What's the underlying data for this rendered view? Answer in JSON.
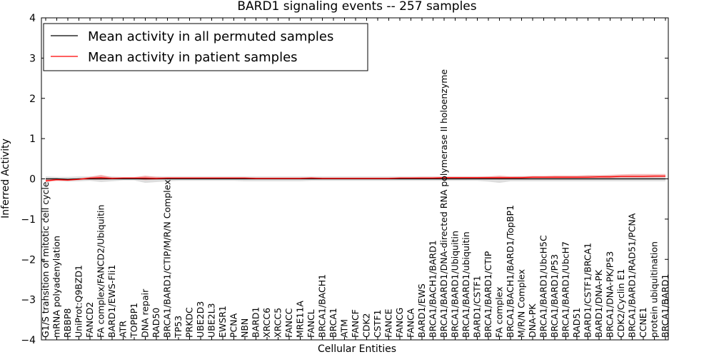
{
  "chart_data": {
    "type": "line",
    "title": "BARD1 signaling events -- 257 samples",
    "xlabel": "Cellular Entities",
    "ylabel": "Inferred Activity",
    "ylim": [
      -4,
      4
    ],
    "yticks": [
      -4,
      -3,
      -2,
      -1,
      0,
      1,
      2,
      3,
      4
    ],
    "ytick_labels": [
      "−4",
      "−3",
      "−2",
      "−1",
      "0",
      "1",
      "2",
      "3",
      "4"
    ],
    "legend": {
      "placement": "top-left",
      "entries": [
        {
          "label": "Mean activity in all permuted samples",
          "color": "#000000"
        },
        {
          "label": "Mean activity in patient samples",
          "color": "#ff0000"
        }
      ]
    },
    "categories": [
      "G1/S transition of mitotic cell cycle",
      "mRNA polyadenylation",
      "RBBP8",
      "UniProt:Q9BZD1",
      "FANCD2",
      "FA complex/FANCD2/Ubiquitin",
      "BARD1/EWS-Fli1",
      "ATR",
      "TOPBP1",
      "DNA repair",
      "RAD50",
      "BRCA1/BARD1/CTIP/M/R/N Complex",
      "TP53",
      "PRKDC",
      "UBE2D3",
      "UBE2L3",
      "EWSR1",
      "PCNA",
      "NBN",
      "BARD1",
      "XRCC6",
      "XRCC5",
      "FANCC",
      "MRE11A",
      "FANCL",
      "BRCA1/BACH1",
      "BRCA1",
      "ATM",
      "FANCF",
      "CDK2",
      "CSTF1",
      "FANCE",
      "FANCG",
      "FANCA",
      "BARD1/EWS",
      "BRCA1/BACH1/BARD1",
      "BRCA1/BARD1/DNA-directed RNA polymerase II holoenzyme",
      "BRCA1/BARD1/Ubiquitin",
      "BRCA1/BARD1/ubiquitin",
      "BARD1/CSTF1",
      "BRCA1/BARD1/CTIP",
      "FA complex",
      "BRCA1/BACH1/BARD1/TopBP1",
      "M/R/N Complex",
      "DNA-PK",
      "BRCA1/BARD1/UbcH5C",
      "BRCA1/BARD1/P53",
      "BRCA1/BARD1/UbcH7",
      "RAD51",
      "BARD1/CSTF1/BRCA1",
      "BARD1/DNA-PK",
      "BRCA1/DNA-PK/P53",
      "CDK2/Cyclin E1",
      "BRCA1/BARD1/RAD51/PCNA",
      "CCNE1",
      "protein ubiquitination",
      "BRCA1/BARD1"
    ],
    "series": [
      {
        "name": "Mean activity in all permuted samples",
        "color": "#000000",
        "values": [
          0.0,
          0.0,
          -0.01,
          0.0,
          0.0,
          0.0,
          0.0,
          0.0,
          0.0,
          0.0,
          0.0,
          0.0,
          0.0,
          0.0,
          0.0,
          0.0,
          0.0,
          0.0,
          0.0,
          0.0,
          0.0,
          0.0,
          0.0,
          0.0,
          0.0,
          0.0,
          0.0,
          0.0,
          0.0,
          0.0,
          0.0,
          0.0,
          0.0,
          0.0,
          0.0,
          0.0,
          0.0,
          0.0,
          0.0,
          0.0,
          0.0,
          0.0,
          0.0,
          0.0,
          0.0,
          0.0,
          0.0,
          0.0,
          0.0,
          0.0,
          0.0,
          0.0,
          0.0,
          0.0,
          0.0,
          0.0,
          0.0
        ]
      },
      {
        "name": "Mean activity in patient samples",
        "color": "#ff0000",
        "values": [
          -0.05,
          -0.02,
          -0.03,
          -0.01,
          0.02,
          0.03,
          0.01,
          0.02,
          0.02,
          0.02,
          0.01,
          0.02,
          0.02,
          0.02,
          0.02,
          0.02,
          0.02,
          0.02,
          0.02,
          0.01,
          0.01,
          0.01,
          0.01,
          0.01,
          0.02,
          0.01,
          0.01,
          0.01,
          0.01,
          0.01,
          0.01,
          0.01,
          0.02,
          0.02,
          0.02,
          0.02,
          0.03,
          0.03,
          0.03,
          0.03,
          0.03,
          0.03,
          0.03,
          0.03,
          0.04,
          0.04,
          0.04,
          0.04,
          0.04,
          0.04,
          0.05,
          0.05,
          0.06,
          0.06,
          0.06,
          0.07,
          0.07
        ]
      }
    ],
    "bands": [
      {
        "name": "permuted samples range",
        "color": "#b4b4b4",
        "lower": [
          -0.06,
          -0.05,
          -0.07,
          -0.06,
          -0.05,
          -0.08,
          -0.06,
          -0.04,
          -0.04,
          -0.1,
          -0.08,
          -0.06,
          -0.05,
          -0.05,
          -0.05,
          -0.05,
          -0.05,
          -0.05,
          -0.06,
          -0.06,
          -0.06,
          -0.06,
          -0.06,
          -0.06,
          -0.05,
          -0.05,
          -0.05,
          -0.05,
          -0.05,
          -0.05,
          -0.05,
          -0.05,
          -0.05,
          -0.05,
          -0.05,
          -0.05,
          -0.05,
          -0.05,
          -0.05,
          -0.05,
          -0.07,
          -0.1,
          -0.06,
          -0.06,
          -0.06,
          -0.06,
          -0.06,
          -0.06,
          -0.06,
          -0.06,
          -0.06,
          -0.06,
          -0.06,
          -0.06,
          -0.06,
          -0.06,
          -0.06
        ],
        "upper": [
          0.06,
          0.05,
          0.05,
          0.06,
          0.06,
          0.07,
          0.06,
          0.05,
          0.05,
          0.06,
          0.06,
          0.06,
          0.06,
          0.06,
          0.06,
          0.06,
          0.06,
          0.06,
          0.06,
          0.06,
          0.06,
          0.06,
          0.06,
          0.06,
          0.06,
          0.06,
          0.06,
          0.06,
          0.06,
          0.06,
          0.06,
          0.06,
          0.06,
          0.06,
          0.06,
          0.06,
          0.06,
          0.06,
          0.06,
          0.06,
          0.06,
          0.06,
          0.06,
          0.07,
          0.07,
          0.07,
          0.07,
          0.07,
          0.07,
          0.08,
          0.08,
          0.08,
          0.08,
          0.08,
          0.08,
          0.08,
          0.08
        ]
      },
      {
        "name": "patient samples range",
        "color": "#f08080",
        "lower": [
          -0.08,
          -0.05,
          -0.05,
          -0.03,
          -0.02,
          -0.02,
          -0.01,
          0.0,
          0.0,
          -0.03,
          -0.02,
          0.0,
          0.0,
          0.0,
          0.0,
          0.0,
          0.0,
          0.0,
          0.0,
          0.0,
          0.0,
          0.0,
          0.0,
          0.0,
          0.0,
          0.0,
          0.0,
          0.0,
          0.0,
          0.0,
          0.0,
          0.0,
          0.0,
          0.0,
          0.0,
          0.0,
          0.01,
          0.01,
          0.01,
          0.01,
          0.0,
          -0.01,
          0.01,
          0.01,
          0.01,
          0.01,
          0.01,
          0.01,
          0.01,
          0.02,
          0.02,
          0.02,
          0.03,
          0.03,
          0.03,
          0.03,
          0.04
        ],
        "upper": [
          0.0,
          0.01,
          0.0,
          0.01,
          0.05,
          0.1,
          0.04,
          0.04,
          0.04,
          0.08,
          0.05,
          0.04,
          0.04,
          0.04,
          0.04,
          0.04,
          0.04,
          0.04,
          0.04,
          0.03,
          0.03,
          0.03,
          0.03,
          0.03,
          0.04,
          0.03,
          0.03,
          0.03,
          0.03,
          0.03,
          0.03,
          0.03,
          0.04,
          0.04,
          0.05,
          0.05,
          0.05,
          0.05,
          0.05,
          0.05,
          0.06,
          0.08,
          0.06,
          0.06,
          0.07,
          0.07,
          0.08,
          0.08,
          0.08,
          0.09,
          0.09,
          0.1,
          0.11,
          0.12,
          0.12,
          0.12,
          0.12
        ]
      }
    ]
  }
}
